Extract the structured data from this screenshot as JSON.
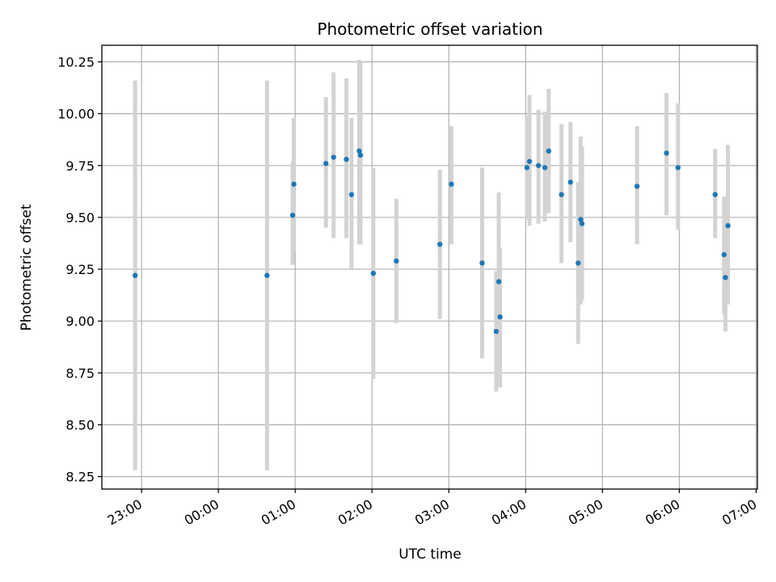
{
  "chart_data": {
    "type": "scatter",
    "title": "Photometric offset variation",
    "xlabel": "UTC time",
    "ylabel": "Photometric offset",
    "x_tick_labels": [
      "23:00",
      "00:00",
      "01:00",
      "02:00",
      "03:00",
      "04:00",
      "05:00",
      "06:00",
      "07:00"
    ],
    "y_tick_labels": [
      "8.25",
      "8.50",
      "8.75",
      "9.00",
      "9.25",
      "9.50",
      "9.75",
      "10.00",
      "10.25"
    ],
    "xlim": [
      "22:29",
      "07:01"
    ],
    "ylim": [
      8.19,
      10.33
    ],
    "grid": true,
    "marker_color": "#1f77b4",
    "errorbar_color": "#d3d3d3",
    "points": [
      {
        "x": "22:55",
        "y": 9.22,
        "lo": 8.28,
        "hi": 10.16
      },
      {
        "x": "00:38",
        "y": 9.22,
        "lo": 8.28,
        "hi": 10.16
      },
      {
        "x": "00:58",
        "y": 9.51,
        "lo": 9.27,
        "hi": 9.77
      },
      {
        "x": "00:59",
        "y": 9.66,
        "lo": 9.33,
        "hi": 9.98
      },
      {
        "x": "01:24",
        "y": 9.76,
        "lo": 9.45,
        "hi": 10.08
      },
      {
        "x": "01:30",
        "y": 9.79,
        "lo": 9.4,
        "hi": 10.2
      },
      {
        "x": "01:40",
        "y": 9.78,
        "lo": 9.4,
        "hi": 10.17
      },
      {
        "x": "01:44",
        "y": 9.61,
        "lo": 9.25,
        "hi": 9.98
      },
      {
        "x": "01:50",
        "y": 9.82,
        "lo": 9.37,
        "hi": 10.26
      },
      {
        "x": "01:51",
        "y": 9.8,
        "lo": 9.37,
        "hi": 10.25
      },
      {
        "x": "02:01",
        "y": 9.23,
        "lo": 8.72,
        "hi": 9.74
      },
      {
        "x": "02:19",
        "y": 9.29,
        "lo": 8.99,
        "hi": 9.59
      },
      {
        "x": "02:53",
        "y": 9.37,
        "lo": 9.01,
        "hi": 9.73
      },
      {
        "x": "03:02",
        "y": 9.66,
        "lo": 9.37,
        "hi": 9.94
      },
      {
        "x": "03:26",
        "y": 9.28,
        "lo": 8.82,
        "hi": 9.74
      },
      {
        "x": "03:37",
        "y": 8.95,
        "lo": 8.66,
        "hi": 9.24
      },
      {
        "x": "03:39",
        "y": 9.19,
        "lo": 8.75,
        "hi": 9.62
      },
      {
        "x": "03:40",
        "y": 9.02,
        "lo": 8.68,
        "hi": 9.35
      },
      {
        "x": "04:01",
        "y": 9.74,
        "lo": 9.49,
        "hi": 9.99
      },
      {
        "x": "04:03",
        "y": 9.77,
        "lo": 9.46,
        "hi": 10.09
      },
      {
        "x": "04:10",
        "y": 9.75,
        "lo": 9.47,
        "hi": 10.02
      },
      {
        "x": "04:15",
        "y": 9.74,
        "lo": 9.48,
        "hi": 10.01
      },
      {
        "x": "04:18",
        "y": 9.82,
        "lo": 9.52,
        "hi": 10.12
      },
      {
        "x": "04:28",
        "y": 9.61,
        "lo": 9.28,
        "hi": 9.95
      },
      {
        "x": "04:35",
        "y": 9.67,
        "lo": 9.38,
        "hi": 9.96
      },
      {
        "x": "04:41",
        "y": 9.28,
        "lo": 8.89,
        "hi": 9.67
      },
      {
        "x": "04:43",
        "y": 9.49,
        "lo": 9.08,
        "hi": 9.89
      },
      {
        "x": "04:44",
        "y": 9.47,
        "lo": 9.1,
        "hi": 9.84
      },
      {
        "x": "05:27",
        "y": 9.65,
        "lo": 9.37,
        "hi": 9.94
      },
      {
        "x": "05:50",
        "y": 9.81,
        "lo": 9.51,
        "hi": 10.1
      },
      {
        "x": "05:59",
        "y": 9.74,
        "lo": 9.44,
        "hi": 10.05
      },
      {
        "x": "06:28",
        "y": 9.61,
        "lo": 9.4,
        "hi": 9.83
      },
      {
        "x": "06:35",
        "y": 9.32,
        "lo": 9.03,
        "hi": 9.6
      },
      {
        "x": "06:36",
        "y": 9.21,
        "lo": 8.95,
        "hi": 9.48
      },
      {
        "x": "06:38",
        "y": 9.46,
        "lo": 9.08,
        "hi": 9.85
      }
    ]
  }
}
